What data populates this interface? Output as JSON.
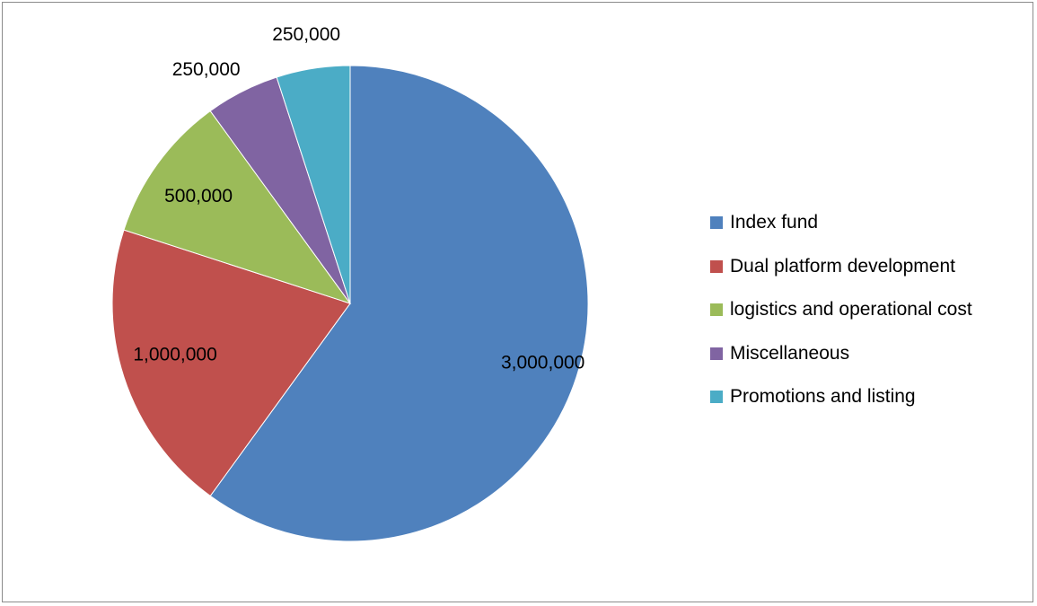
{
  "chart_data": {
    "type": "pie",
    "categories": [
      "Index fund",
      "Dual platform development",
      "logistics and operational cost",
      "Miscellaneous",
      "Promotions and listing"
    ],
    "values": [
      3000000,
      1000000,
      500000,
      250000,
      250000
    ],
    "value_labels": [
      "3,000,000",
      "1,000,000",
      "500,000",
      "250,000",
      "250,000"
    ],
    "colors": [
      "#4f81bd",
      "#c0504d",
      "#9bbb59",
      "#8064a2",
      "#4bacc6"
    ],
    "start_angle": "12 o'clock",
    "direction": "clockwise",
    "legend_position": "right"
  }
}
